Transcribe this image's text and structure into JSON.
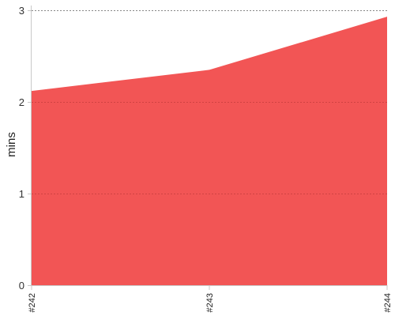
{
  "chart_data": {
    "type": "area",
    "categories": [
      "#242",
      "#243",
      "#244"
    ],
    "series": [
      {
        "values": [
          2.12,
          2.35,
          2.93
        ]
      }
    ],
    "title": "",
    "xlabel": "",
    "ylabel": "mins",
    "ylim": [
      0,
      3
    ],
    "yticks": [
      0,
      1,
      2,
      3
    ],
    "grid": true,
    "color": "#f25555"
  }
}
